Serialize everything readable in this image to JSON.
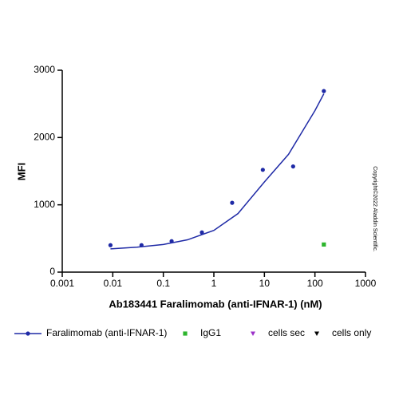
{
  "chart_data": {
    "type": "scatter",
    "xlabel": "Ab183441 Faralimomab (anti-IFNAR-1) (nM)",
    "ylabel": "MFI",
    "xscale": "log",
    "xlim": [
      0.001,
      1000
    ],
    "xticks": [
      0.001,
      0.01,
      0.1,
      1,
      10,
      100,
      1000
    ],
    "ylim": [
      0,
      3000
    ],
    "yticks": [
      0,
      1000,
      2000,
      3000
    ],
    "legend": "bottom",
    "annotation": "Copyright©2022 Aladdin Scientific.",
    "series": [
      {
        "name": "Faralimomab (anti-IFNAR-1)",
        "color": "#1f2aa6",
        "marker": "circle",
        "x": [
          0.009,
          0.037,
          0.146,
          0.58,
          2.3,
          9.3,
          37,
          150
        ],
        "values": [
          400,
          400,
          460,
          590,
          1030,
          1520,
          1570,
          2690
        ],
        "fit_x": [
          0.009,
          0.03,
          0.1,
          0.3,
          1,
          3,
          10,
          30,
          100,
          150
        ],
        "fit_values": [
          345,
          370,
          410,
          480,
          620,
          870,
          1340,
          1750,
          2400,
          2650
        ]
      },
      {
        "name": "IgG1",
        "color": "#2db52d",
        "marker": "square",
        "x": [
          150
        ],
        "values": [
          410
        ]
      },
      {
        "name": "cells sec",
        "color": "#9b30c8",
        "marker": "triangle",
        "x": [],
        "values": []
      },
      {
        "name": "cells only",
        "color": "#000000",
        "marker": "triangle",
        "x": [],
        "values": []
      }
    ]
  }
}
